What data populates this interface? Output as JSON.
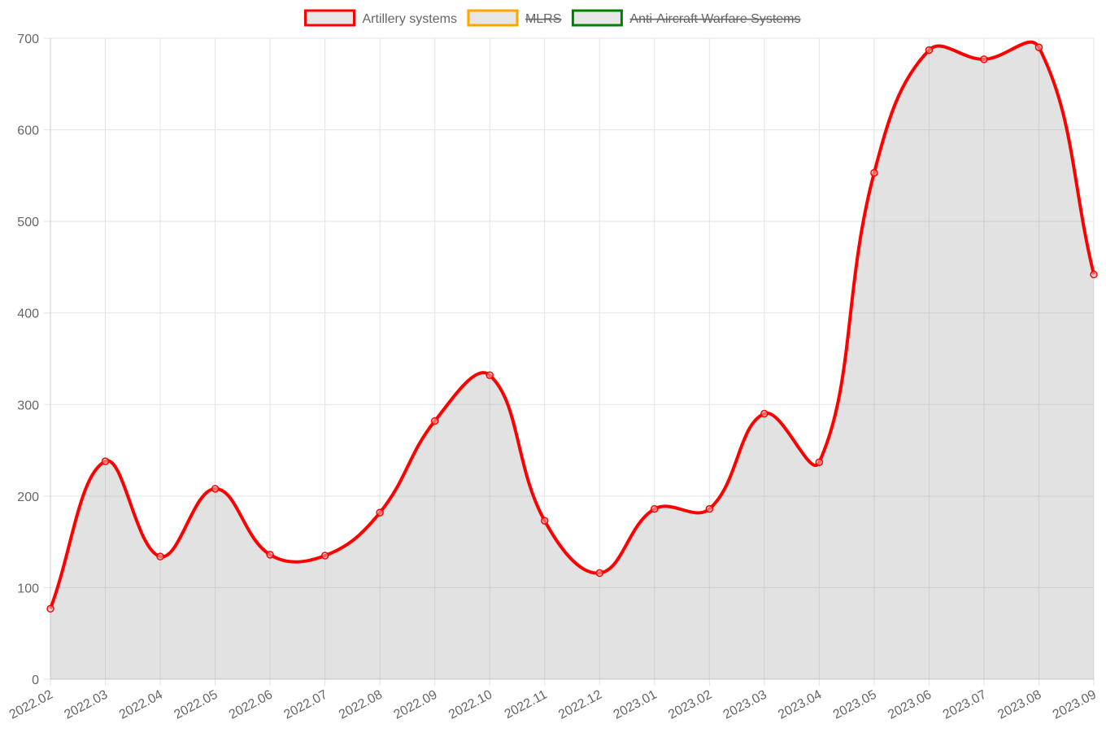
{
  "chart_data": {
    "type": "line",
    "categories": [
      "2022.02",
      "2022.03",
      "2022.04",
      "2022.05",
      "2022.06",
      "2022.07",
      "2022.08",
      "2022.09",
      "2022.10",
      "2022.11",
      "2022.12",
      "2023.01",
      "2023.02",
      "2023.03",
      "2023.04",
      "2023.05",
      "2023.06",
      "2023.07",
      "2023.08",
      "2023.09"
    ],
    "series": [
      {
        "name": "Artillery systems",
        "color": "#ff0000",
        "fill": "rgba(160,160,160,0.3)",
        "hidden": false,
        "values": [
          77,
          238,
          134,
          208,
          136,
          135,
          182,
          282,
          332,
          173,
          116,
          186,
          186,
          290,
          237,
          553,
          687,
          677,
          690,
          442
        ]
      },
      {
        "name": "MLRS",
        "color": "#ffa500",
        "fill": "rgba(160,160,160,0.3)",
        "hidden": true
      },
      {
        "name": "Anti-Aircraft Warfare Systems",
        "color": "#008000",
        "fill": "rgba(160,160,160,0.3)",
        "hidden": true
      }
    ],
    "ylim": [
      0,
      700
    ],
    "yticks": [
      0,
      100,
      200,
      300,
      400,
      500,
      600,
      700
    ],
    "grid": true,
    "legend": "top"
  }
}
